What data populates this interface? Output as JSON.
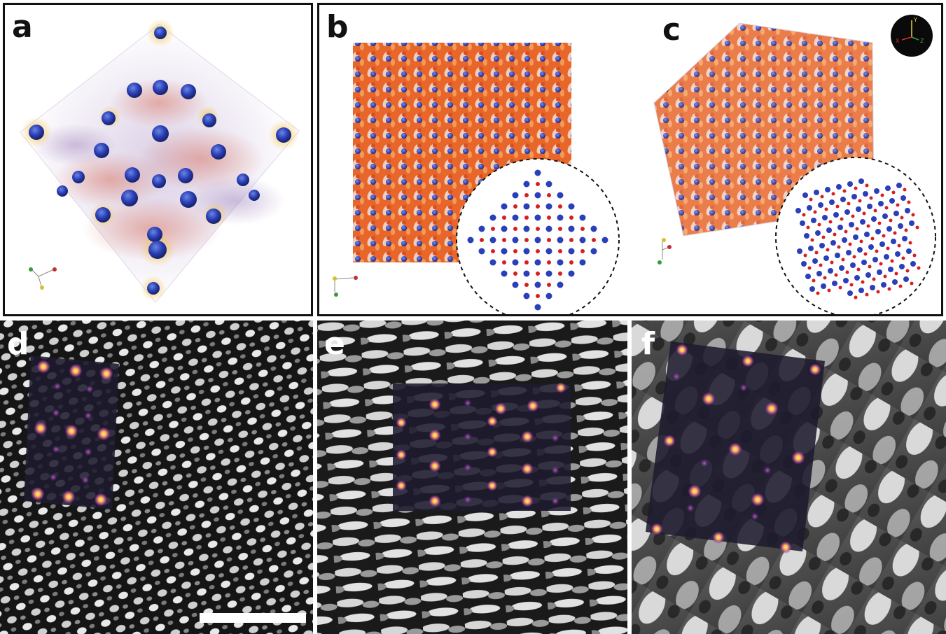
{
  "figure": {
    "panels": [
      {
        "id": "a",
        "label": "a"
      },
      {
        "id": "b",
        "label": "b"
      },
      {
        "id": "c",
        "label": "c"
      },
      {
        "id": "d",
        "label": "d"
      },
      {
        "id": "e",
        "label": "e"
      },
      {
        "id": "f",
        "label": "f"
      }
    ],
    "axes_widget": {
      "x_label": "X",
      "y_label": "Y",
      "z_label": "Z"
    },
    "colors": {
      "atom_blue": "#2a3fb8",
      "atom_red": "#d81e1e",
      "density_orange": "#e8662a",
      "density_purple": "#8c6aa8",
      "panel_border": "#111111",
      "overlay_spot": "#ffb347"
    }
  }
}
